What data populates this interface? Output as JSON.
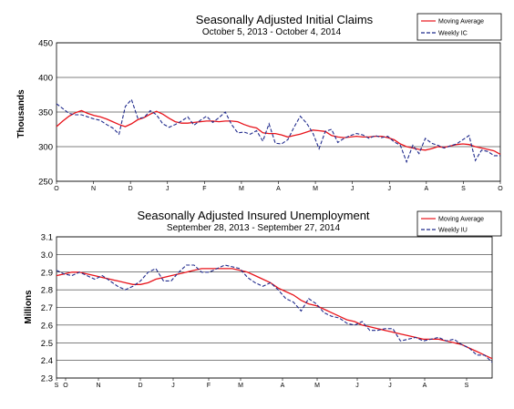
{
  "chart_data": [
    {
      "type": "line",
      "title": "Seasonally Adjusted Initial Claims",
      "subtitle": "October 5, 2013  - October 4, 2014",
      "ylabel": "Thousands",
      "ylim": [
        250,
        450
      ],
      "yticks": [
        "250",
        "300",
        "350",
        "400",
        "450"
      ],
      "x_tick_labels": [
        "O",
        "N",
        "D",
        "J",
        "F",
        "M",
        "A",
        "M",
        "J",
        "J",
        "A",
        "S",
        "O"
      ],
      "grid": true,
      "legend_position": "top-right",
      "series": [
        {
          "name": "Moving Average",
          "color": "#e8141b",
          "style": "solid",
          "values": [
            329,
            337,
            344,
            349,
            352,
            348,
            345,
            343,
            340,
            336,
            332,
            329,
            333,
            339,
            342,
            347,
            351,
            347,
            341,
            336,
            334,
            334,
            335,
            336,
            337,
            337,
            336,
            337,
            337,
            336,
            332,
            329,
            327,
            320,
            319,
            319,
            317,
            314,
            316,
            318,
            321,
            324,
            323,
            322,
            316,
            314,
            313,
            314,
            315,
            314,
            314,
            315,
            315,
            313,
            310,
            304,
            300,
            298,
            296,
            295,
            297,
            300,
            299,
            301,
            303,
            304,
            303,
            300,
            298,
            296,
            294,
            289
          ]
        },
        {
          "name": "Weekly IC",
          "color": "#1f2a8c",
          "style": "dashed",
          "values": [
            362,
            355,
            348,
            346,
            346,
            343,
            340,
            338,
            332,
            327,
            318,
            358,
            368,
            341,
            342,
            352,
            346,
            333,
            328,
            332,
            337,
            343,
            331,
            338,
            344,
            335,
            342,
            350,
            332,
            320,
            321,
            318,
            323,
            308,
            333,
            305,
            304,
            310,
            328,
            344,
            334,
            320,
            297,
            322,
            325,
            306,
            312,
            316,
            319,
            317,
            312,
            316,
            313,
            315,
            307,
            302,
            278,
            302,
            290,
            312,
            305,
            302,
            298,
            301,
            304,
            310,
            316,
            280,
            295,
            293,
            287,
            287
          ]
        }
      ]
    },
    {
      "type": "line",
      "title": "Seasonally Adjusted Insured Unemployment",
      "subtitle": "September 28, 2013  -  September 27, 2014",
      "ylabel": "Millions",
      "ylim": [
        2.3,
        3.1
      ],
      "yticks": [
        "2.3",
        "2.4",
        "2.5",
        "2.6",
        "2.7",
        "2.8",
        "2.9",
        "3.0",
        "3.1"
      ],
      "x_tick_labels": [
        "S",
        "O",
        "N",
        "D",
        "J",
        "F",
        "M",
        "A",
        "M",
        "J",
        "J",
        "A",
        "S"
      ],
      "grid": true,
      "legend_position": "top-right",
      "series": [
        {
          "name": "Moving Average",
          "color": "#e8141b",
          "style": "solid",
          "values": [
            2.88,
            2.89,
            2.9,
            2.9,
            2.89,
            2.88,
            2.87,
            2.86,
            2.85,
            2.84,
            2.83,
            2.83,
            2.84,
            2.86,
            2.87,
            2.88,
            2.89,
            2.9,
            2.91,
            2.92,
            2.92,
            2.92,
            2.92,
            2.92,
            2.91,
            2.9,
            2.88,
            2.86,
            2.84,
            2.81,
            2.79,
            2.77,
            2.74,
            2.72,
            2.71,
            2.69,
            2.67,
            2.65,
            2.63,
            2.62,
            2.6,
            2.59,
            2.58,
            2.57,
            2.56,
            2.55,
            2.54,
            2.53,
            2.52,
            2.52,
            2.52,
            2.51,
            2.5,
            2.49,
            2.47,
            2.45,
            2.43,
            2.41
          ]
        },
        {
          "name": "Weekly IU",
          "color": "#1f2a8c",
          "style": "dashed",
          "values": [
            2.91,
            2.89,
            2.88,
            2.9,
            2.88,
            2.86,
            2.88,
            2.85,
            2.82,
            2.8,
            2.82,
            2.85,
            2.9,
            2.92,
            2.85,
            2.85,
            2.9,
            2.94,
            2.94,
            2.9,
            2.9,
            2.92,
            2.94,
            2.93,
            2.92,
            2.87,
            2.84,
            2.82,
            2.84,
            2.8,
            2.75,
            2.73,
            2.68,
            2.75,
            2.72,
            2.67,
            2.65,
            2.64,
            2.61,
            2.6,
            2.62,
            2.57,
            2.57,
            2.58,
            2.58,
            2.51,
            2.52,
            2.53,
            2.51,
            2.52,
            2.53,
            2.51,
            2.52,
            2.49,
            2.47,
            2.43,
            2.43,
            2.39
          ]
        }
      ]
    }
  ]
}
